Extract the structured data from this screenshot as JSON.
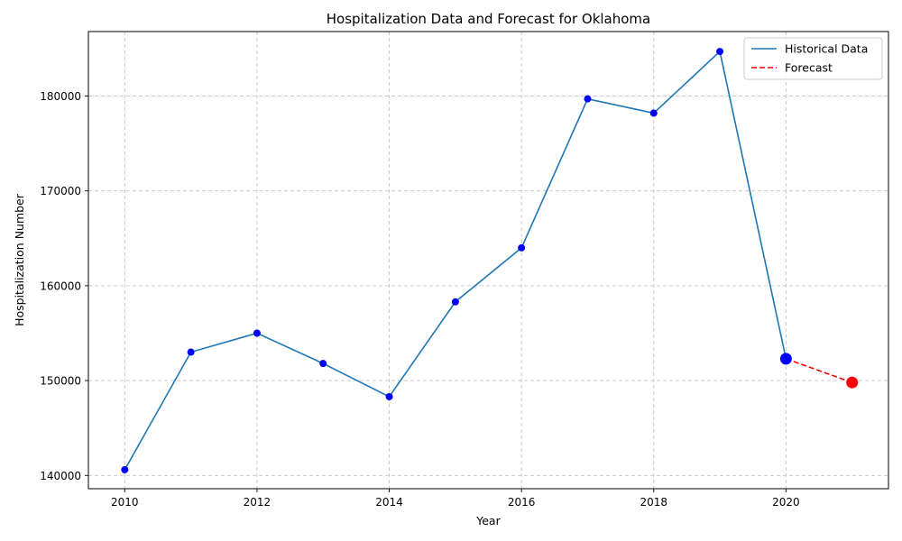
{
  "chart_data": {
    "type": "line",
    "title": "Hospitalization Data and Forecast for Oklahoma",
    "xlabel": "Year",
    "ylabel": "Hospitalization Number",
    "xlim": [
      2009.45,
      2021.55
    ],
    "ylim": [
      138600,
      186800
    ],
    "xticks": [
      2010,
      2012,
      2014,
      2016,
      2018,
      2020
    ],
    "yticks": [
      140000,
      150000,
      160000,
      170000,
      180000
    ],
    "xtick_labels": [
      "2010",
      "2012",
      "2014",
      "2016",
      "2018",
      "2020"
    ],
    "ytick_labels": [
      "140000",
      "150000",
      "160000",
      "170000",
      "180000"
    ],
    "grid": true,
    "legend_position": "top-right",
    "series": [
      {
        "name": "Historical Data",
        "style": "solid",
        "color": "#1f77b4",
        "marker_color": "#0000ff",
        "x": [
          2010,
          2011,
          2012,
          2013,
          2014,
          2015,
          2016,
          2017,
          2018,
          2019,
          2020
        ],
        "y": [
          140600,
          153000,
          155000,
          151800,
          148300,
          158300,
          164000,
          179700,
          178200,
          184700,
          152300
        ]
      },
      {
        "name": "Forecast",
        "style": "dashed",
        "color": "#ff0000",
        "marker_color": "#ff0000",
        "x": [
          2020,
          2021
        ],
        "y": [
          152300,
          149800
        ]
      }
    ]
  }
}
